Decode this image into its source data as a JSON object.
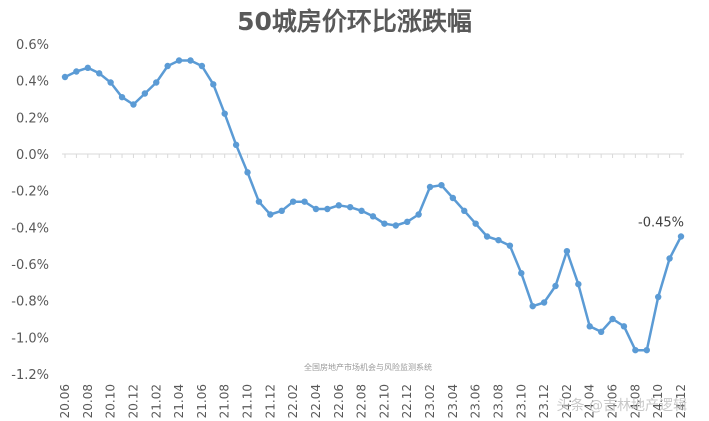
{
  "chart_data": {
    "type": "line",
    "title": "50城房价环比涨跌幅",
    "xlabel": "",
    "ylabel": "",
    "ylim": [
      -1.2,
      0.6
    ],
    "yticks": [
      "0.6%",
      "0.4%",
      "0.2%",
      "0.0%",
      "-0.2%",
      "-0.4%",
      "-0.6%",
      "-0.8%",
      "-1.0%",
      "-1.2%"
    ],
    "ytick_values": [
      0.6,
      0.4,
      0.2,
      0.0,
      -0.2,
      -0.4,
      -0.6,
      -0.8,
      -1.0,
      -1.2
    ],
    "xtick_labels": [
      "20.06",
      "20.08",
      "20.10",
      "20.12",
      "21.02",
      "21.04",
      "21.06",
      "21.08",
      "21.10",
      "21.12",
      "22.02",
      "22.04",
      "22.06",
      "22.08",
      "22.10",
      "22.12",
      "23.02",
      "23.04",
      "23.06",
      "23.08",
      "23.10",
      "23.12",
      "24.02",
      "24.04",
      "24.06",
      "24.08",
      "24.10",
      "24.12"
    ],
    "x": [
      "20.06",
      "20.07",
      "20.08",
      "20.09",
      "20.10",
      "20.11",
      "20.12",
      "21.01",
      "21.02",
      "21.03",
      "21.04",
      "21.05",
      "21.06",
      "21.07",
      "21.08",
      "21.09",
      "21.10",
      "21.11",
      "21.12",
      "22.01",
      "22.02",
      "22.03",
      "22.04",
      "22.05",
      "22.06",
      "22.07",
      "22.08",
      "22.09",
      "22.10",
      "22.11",
      "22.12",
      "23.01",
      "23.02",
      "23.03",
      "23.04",
      "23.05",
      "23.06",
      "23.07",
      "23.08",
      "23.09",
      "23.10",
      "23.11",
      "23.12",
      "24.01",
      "24.02",
      "24.03",
      "24.04",
      "24.05",
      "24.06",
      "24.07",
      "24.08",
      "24.09",
      "24.10",
      "24.11",
      "24.12"
    ],
    "series": [
      {
        "values": [
          0.42,
          0.45,
          0.47,
          0.44,
          0.39,
          0.31,
          0.27,
          0.33,
          0.39,
          0.48,
          0.51,
          0.51,
          0.48,
          0.38,
          0.22,
          0.05,
          -0.1,
          -0.26,
          -0.33,
          -0.31,
          -0.26,
          -0.26,
          -0.3,
          -0.3,
          -0.28,
          -0.29,
          -0.31,
          -0.34,
          -0.38,
          -0.39,
          -0.37,
          -0.33,
          -0.18,
          -0.17,
          -0.24,
          -0.31,
          -0.38,
          -0.45,
          -0.47,
          -0.5,
          -0.65,
          -0.83,
          -0.81,
          -0.72,
          -0.53,
          -0.71,
          -0.94,
          -0.97,
          -0.9,
          -0.94,
          -1.07,
          -1.07,
          -0.78,
          -0.57,
          -0.45
        ],
        "color": "#5b9bd5"
      }
    ],
    "annotations": [
      {
        "x": "24.12",
        "text": "-0.45%"
      }
    ],
    "grid": false,
    "legend": "none"
  },
  "source_note": "全国房地产市场机会与风险监测系统",
  "watermark": "头条 @吉林地产逻辑"
}
